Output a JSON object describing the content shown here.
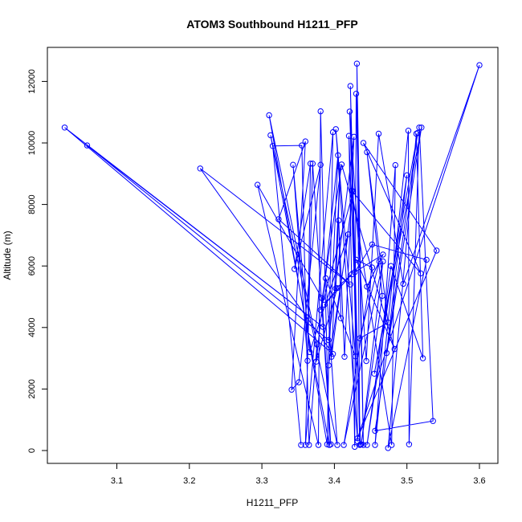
{
  "chart_data": {
    "type": "line",
    "title": "ATOM3 Southbound H1211_PFP",
    "xlabel": "H1211_PFP",
    "ylabel": "Altitude (m)",
    "xlim": [
      3.0,
      3.6
    ],
    "ylim": [
      0,
      12600
    ],
    "x_ticks": [
      3.1,
      3.2,
      3.3,
      3.4,
      3.5,
      3.6
    ],
    "x_tick_labels": [
      "3.1",
      "3.2",
      "3.3",
      "3.4",
      "3.5",
      "3.6"
    ],
    "y_ticks": [
      0,
      2000,
      4000,
      6000,
      8000,
      10000,
      12000
    ],
    "y_tick_labels": [
      "0",
      "2000",
      "4000",
      "6000",
      "8000",
      "10000",
      "12000"
    ],
    "markers": "open-circle",
    "color": "#0000ff",
    "series": [
      {
        "points": [
          [
            3.354,
            180
          ],
          [
            3.315,
            9900
          ],
          [
            3.355,
            9920
          ],
          [
            3.365,
            180
          ],
          [
            3.376,
            3450
          ],
          [
            3.31,
            10900
          ],
          [
            3.39,
            200
          ],
          [
            3.398,
            10350
          ],
          [
            3.36,
            180
          ],
          [
            3.37,
            9330
          ],
          [
            3.395,
            200
          ],
          [
            3.383,
            4950
          ],
          [
            3.294,
            8640
          ],
          [
            3.378,
            180
          ],
          [
            3.381,
            11030
          ],
          [
            3.393,
            180
          ],
          [
            3.312,
            10250
          ],
          [
            3.404,
            180
          ],
          [
            3.388,
            5600
          ],
          [
            3.429,
            3060
          ],
          [
            3.402,
            10450
          ],
          [
            3.432,
            300
          ],
          [
            3.422,
            11850
          ],
          [
            3.435,
            180
          ],
          [
            3.431,
            12580
          ],
          [
            3.44,
            180
          ],
          [
            3.43,
            11600
          ],
          [
            3.428,
            120
          ],
          [
            3.42,
            10230
          ],
          [
            3.436,
            200
          ],
          [
            3.421,
            11020
          ],
          [
            3.444,
            2910
          ],
          [
            3.461,
            10300
          ],
          [
            3.495,
            5420
          ],
          [
            3.6,
            12530
          ],
          [
            3.432,
            400
          ],
          [
            3.541,
            6500
          ],
          [
            3.44,
            10000
          ],
          [
            3.519,
            5760
          ],
          [
            3.424,
            8450
          ],
          [
            3.479,
            180
          ],
          [
            3.484,
            9280
          ],
          [
            3.456,
            180
          ],
          [
            3.502,
            10400
          ],
          [
            3.503,
            200
          ],
          [
            3.517,
            10500
          ],
          [
            3.536,
            960
          ],
          [
            3.456,
            640
          ],
          [
            3.52,
            10500
          ],
          [
            3.455,
            2500
          ],
          [
            3.515,
            10330
          ],
          [
            3.472,
            3170
          ],
          [
            3.5,
            8950
          ],
          [
            3.445,
            180
          ],
          [
            3.478,
            6000
          ],
          [
            3.522,
            3000
          ],
          [
            3.513,
            10300
          ],
          [
            3.474,
            80
          ],
          [
            3.527,
            6200
          ],
          [
            3.452,
            6700
          ],
          [
            3.428,
            5800
          ],
          [
            3.467,
            6370
          ],
          [
            3.445,
            5330
          ],
          [
            3.462,
            6150
          ],
          [
            3.435,
            3650
          ],
          [
            3.474,
            4160
          ],
          [
            3.445,
            9700
          ],
          [
            3.466,
            5030
          ],
          [
            3.437,
            200
          ],
          [
            3.467,
            6150
          ],
          [
            3.413,
            180
          ],
          [
            3.452,
            5950
          ],
          [
            3.43,
            6200
          ],
          [
            3.483,
            3300
          ],
          [
            3.41,
            9300
          ],
          [
            3.381,
            4570
          ],
          [
            3.426,
            8420
          ],
          [
            3.396,
            3050
          ],
          [
            3.408,
            9210
          ],
          [
            3.402,
            5270
          ],
          [
            3.424,
            5730
          ],
          [
            3.386,
            4740
          ],
          [
            3.404,
            5280
          ],
          [
            3.375,
            2890
          ],
          [
            3.405,
            9600
          ],
          [
            3.392,
            2770
          ],
          [
            3.419,
            7030
          ],
          [
            3.366,
            3200
          ],
          [
            3.343,
            9290
          ],
          [
            3.363,
            2920
          ],
          [
            3.367,
            9330
          ],
          [
            3.345,
            5900
          ],
          [
            3.381,
            9290
          ],
          [
            3.351,
            2220
          ],
          [
            3.341,
            1980
          ],
          [
            3.36,
            10050
          ],
          [
            3.323,
            7520
          ],
          [
            3.422,
            5400
          ],
          [
            3.215,
            9170
          ],
          [
            3.398,
            3140
          ],
          [
            3.028,
            10500
          ],
          [
            3.384,
            4020
          ],
          [
            3.059,
            9920
          ],
          [
            3.392,
            3590
          ],
          [
            3.427,
            10200
          ],
          [
            3.414,
            3050
          ],
          [
            3.406,
            7480
          ],
          [
            3.409,
            4300
          ]
        ]
      }
    ]
  }
}
